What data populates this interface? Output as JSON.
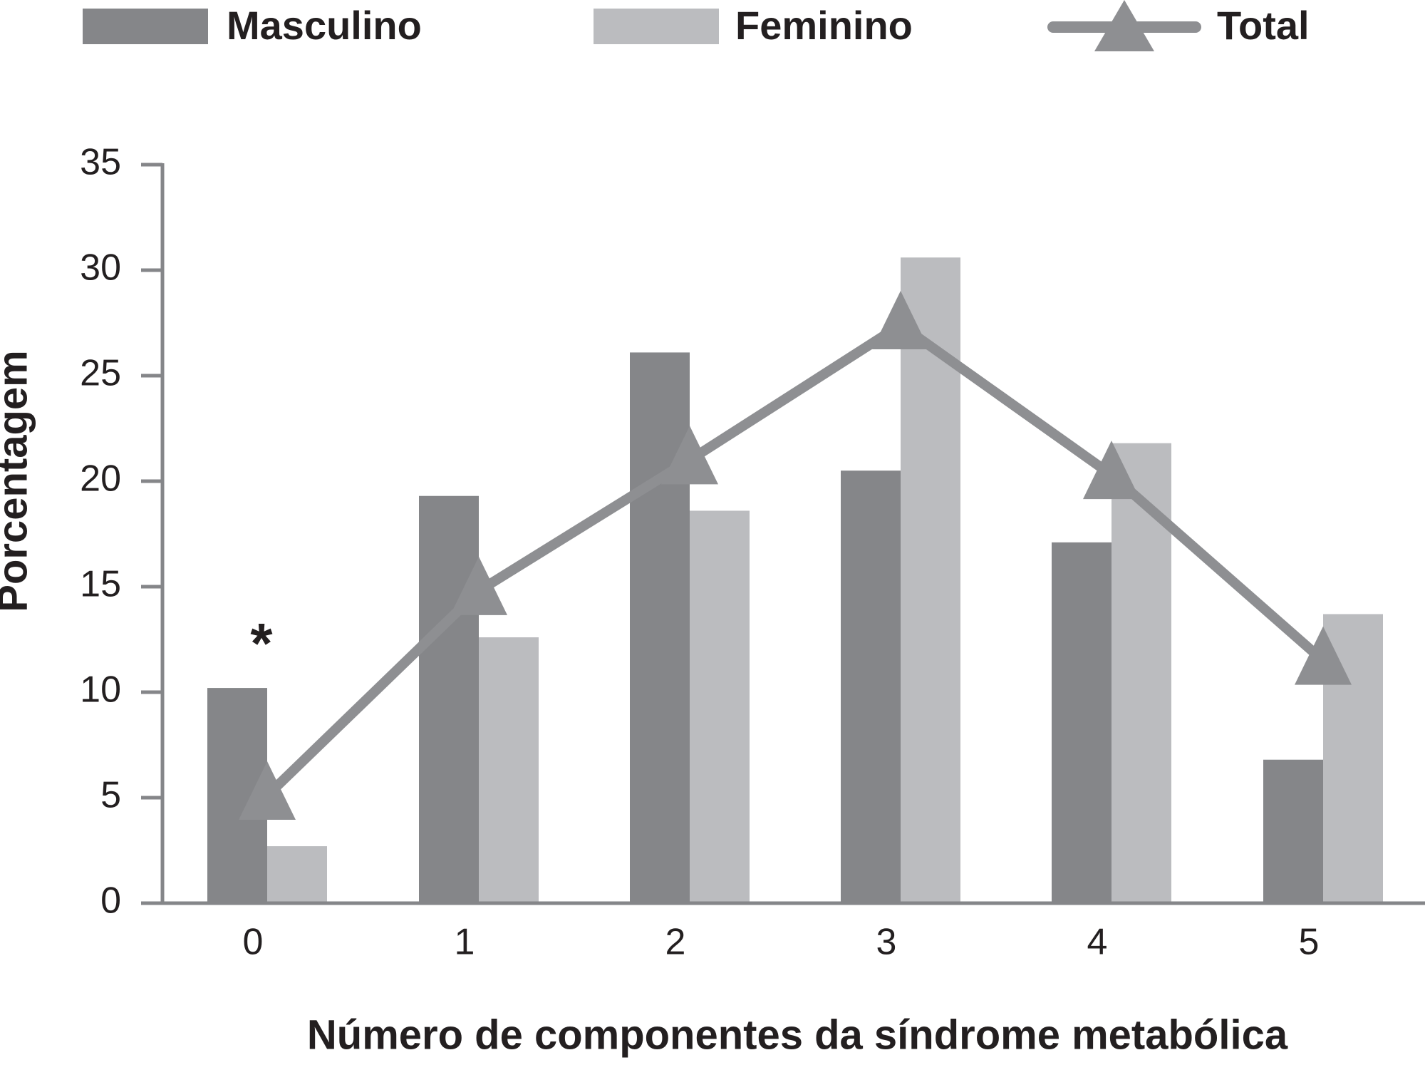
{
  "chart_data": {
    "type": "bar",
    "xlabel": "Número de componentes da síndrome metabólica",
    "ylabel": "Porcentagem",
    "categories": [
      "0",
      "1",
      "2",
      "3",
      "4",
      "5"
    ],
    "ylim": [
      0,
      35
    ],
    "yticks": [
      "0",
      "5",
      "10",
      "15",
      "20",
      "25",
      "30",
      "35"
    ],
    "series": [
      {
        "name": "Masculino",
        "type": "bar",
        "color": "#858689",
        "values": [
          10.2,
          19.3,
          26.1,
          20.5,
          17.1,
          6.8
        ]
      },
      {
        "name": "Feminino",
        "type": "bar",
        "color": "#bbbcbf",
        "values": [
          2.7,
          12.6,
          18.6,
          30.6,
          21.8,
          13.7
        ]
      },
      {
        "name": "Total",
        "type": "line",
        "marker": "triangle",
        "color": "#8e8f92",
        "values": [
          5.1,
          14.8,
          21.0,
          27.4,
          20.3,
          11.5
        ]
      }
    ],
    "annotations": [
      {
        "category": "0",
        "text": "*"
      }
    ],
    "legend_position": "top",
    "grid": false
  }
}
